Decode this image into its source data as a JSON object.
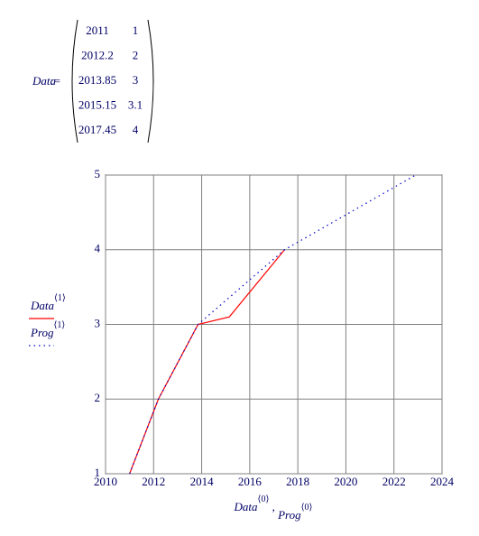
{
  "assign_operator": ":=",
  "chart_data": {
    "type": "line",
    "series": [
      {
        "name": "Data",
        "index_label": "⟨1⟩",
        "color": "#ff0000",
        "style": "solid",
        "x": [
          2011,
          2012.2,
          2013.85,
          2015.15,
          2017.45
        ],
        "values": [
          1,
          2,
          3,
          3.1,
          4
        ]
      },
      {
        "name": "Prog",
        "index_label": "⟨1⟩",
        "color": "#0000cc",
        "style": "dotted",
        "x": [
          2011,
          2012.2,
          2013.85,
          2017.45,
          2022.9
        ],
        "values": [
          1,
          2,
          3,
          4,
          5
        ]
      }
    ],
    "x_label": [
      "Data",
      "⟨0⟩",
      " , ",
      "Prog",
      "⟨0⟩"
    ],
    "xlim": [
      2010,
      2024
    ],
    "xticks": [
      2010,
      2012,
      2014,
      2016,
      2018,
      2020,
      2022,
      2024
    ],
    "ylim": [
      1,
      5
    ],
    "yticks": [
      1,
      2,
      3,
      4,
      5
    ],
    "grid": true
  }
}
